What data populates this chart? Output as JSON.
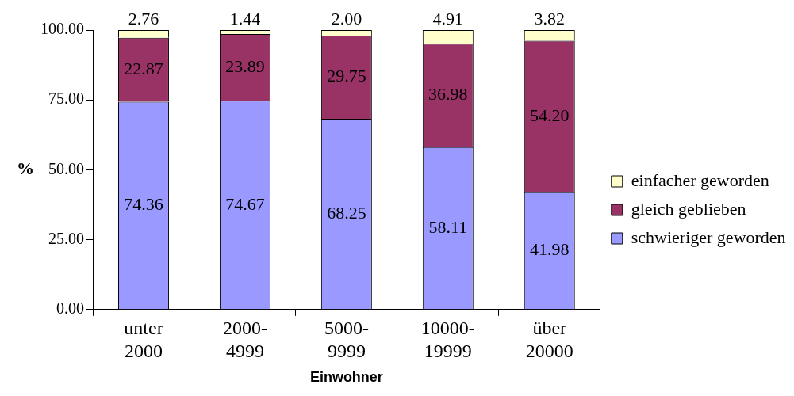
{
  "chart_data": {
    "type": "bar",
    "stacked": true,
    "xlabel": "Einwohner",
    "ylabel": "%",
    "categories": [
      "unter 2000",
      "2000-4999",
      "5000-9999",
      "10000-19999",
      "über 20000"
    ],
    "series": [
      {
        "name": "schwieriger geworden",
        "color": "#9999ff",
        "values": [
          74.36,
          74.67,
          68.25,
          58.11,
          41.98
        ],
        "value_labels": [
          "74.36",
          "74.67",
          "68.25",
          "58.11",
          "41.98"
        ]
      },
      {
        "name": "gleich geblieben",
        "color": "#993366",
        "values": [
          22.87,
          23.89,
          29.75,
          36.98,
          54.2
        ],
        "value_labels": [
          "22.87",
          "23.89",
          "29.75",
          "36.98",
          "54.20"
        ]
      },
      {
        "name": "einfacher geworden",
        "color": "#ffffcc",
        "values": [
          2.76,
          1.44,
          2.0,
          4.91,
          3.82
        ],
        "value_labels": [
          "2.76",
          "1.44",
          "2.00",
          "4.91",
          "3.82"
        ]
      }
    ],
    "ylim": [
      0,
      100
    ],
    "yticks": [
      {
        "value": 0,
        "label": "0.00"
      },
      {
        "value": 25,
        "label": "25.00"
      },
      {
        "value": 50,
        "label": "50.00"
      },
      {
        "value": 75,
        "label": "75.00"
      },
      {
        "value": 100,
        "label": "100.00"
      }
    ],
    "grid": false,
    "legend": "right"
  }
}
